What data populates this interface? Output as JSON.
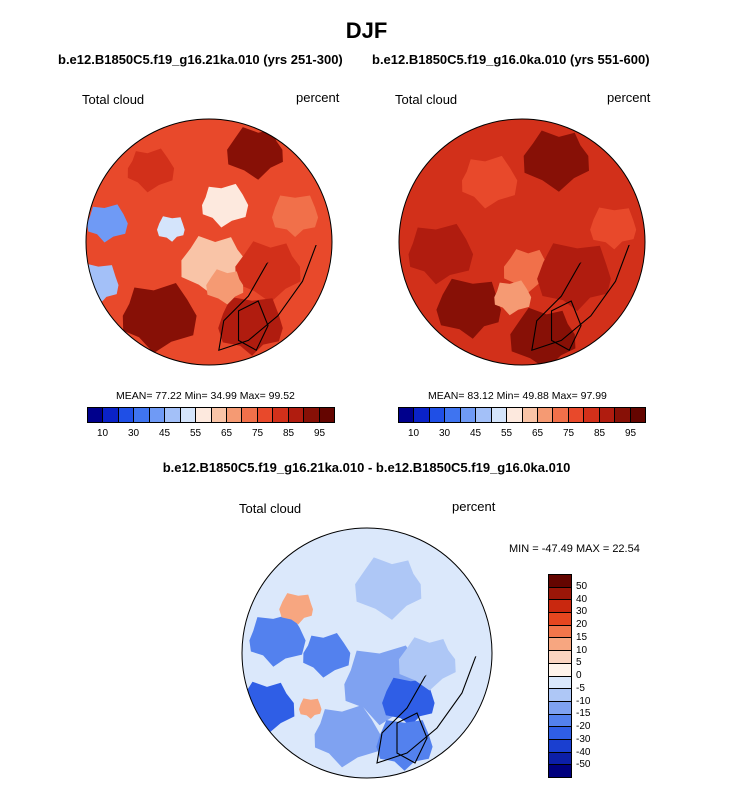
{
  "title": "DJF",
  "panels": [
    {
      "subtitle": "b.e12.B1850C5.f19_g16.21ka.010 (yrs 251-300)",
      "variable": "Total cloud",
      "units": "percent",
      "stats": "MEAN=  77.22  Min=  34.99  Max=  99.52"
    },
    {
      "subtitle": "b.e12.B1850C5.f19_g16.0ka.010 (yrs 551-600)",
      "variable": "Total cloud",
      "units": "percent",
      "stats": "MEAN=  83.12  Min=  49.88  Max=  97.99"
    }
  ],
  "difference": {
    "title": "b.e12.B1850C5.f19_g16.21ka.010 - b.e12.B1850C5.f19_g16.0ka.010",
    "variable": "Total cloud",
    "units": "percent",
    "stats": "MIN = -47.49 MAX =  22.54"
  },
  "chart_data": [
    {
      "type": "heatmap",
      "projection": "north polar stereographic",
      "title": "b.e12.B1850C5.f19_g16.21ka.010 (yrs 251-300)",
      "field": "Total cloud",
      "units": "percent",
      "mean": 77.22,
      "min": 34.99,
      "max": 99.52,
      "colorbar_levels": [
        10,
        20,
        30,
        40,
        45,
        50,
        55,
        60,
        65,
        70,
        75,
        80,
        85,
        90,
        95
      ],
      "colorbar_tick_labels": [
        "10",
        "30",
        "45",
        "55",
        "65",
        "75",
        "85",
        "95"
      ]
    },
    {
      "type": "heatmap",
      "projection": "north polar stereographic",
      "title": "b.e12.B1850C5.f19_g16.0ka.010 (yrs 551-600)",
      "field": "Total cloud",
      "units": "percent",
      "mean": 83.12,
      "min": 49.88,
      "max": 97.99,
      "colorbar_levels": [
        10,
        20,
        30,
        40,
        45,
        50,
        55,
        60,
        65,
        70,
        75,
        80,
        85,
        90,
        95
      ],
      "colorbar_tick_labels": [
        "10",
        "30",
        "45",
        "55",
        "65",
        "75",
        "85",
        "95"
      ]
    },
    {
      "type": "heatmap",
      "projection": "north polar stereographic",
      "title": "b.e12.B1850C5.f19_g16.21ka.010 - b.e12.B1850C5.f19_g16.0ka.010",
      "field": "Total cloud",
      "units": "percent",
      "min": -47.49,
      "max": 22.54,
      "colorbar_levels": [
        50,
        40,
        30,
        20,
        15,
        10,
        5,
        0,
        -5,
        -10,
        -15,
        -20,
        -30,
        -40,
        -50
      ],
      "colorbar_tick_labels": [
        "50",
        "40",
        "30",
        "20",
        "15",
        "10",
        "5",
        "0",
        "-5",
        "-10",
        "-15",
        "-20",
        "-30",
        "-40",
        "-50"
      ]
    }
  ],
  "colors": {
    "abs_palette": [
      "#00008c",
      "#0a22c8",
      "#1f4fe6",
      "#3f74f0",
      "#6f9af5",
      "#a3c0f8",
      "#d4e4fb",
      "#fde9de",
      "#f9c4a7",
      "#f59a73",
      "#f1704a",
      "#e8492b",
      "#d2301a",
      "#b01c0f",
      "#871006",
      "#640500"
    ],
    "diff_palette": [
      "#640500",
      "#9a1608",
      "#c9280f",
      "#e6461f",
      "#f2764b",
      "#f7a680",
      "#fbd4c0",
      "#fff3ea",
      "#dbe8fb",
      "#aec7f6",
      "#7fa2f1",
      "#5381ee",
      "#2f5ee6",
      "#1a3fd0",
      "#0c1fa8",
      "#00007e"
    ],
    "coast": "#000000"
  }
}
